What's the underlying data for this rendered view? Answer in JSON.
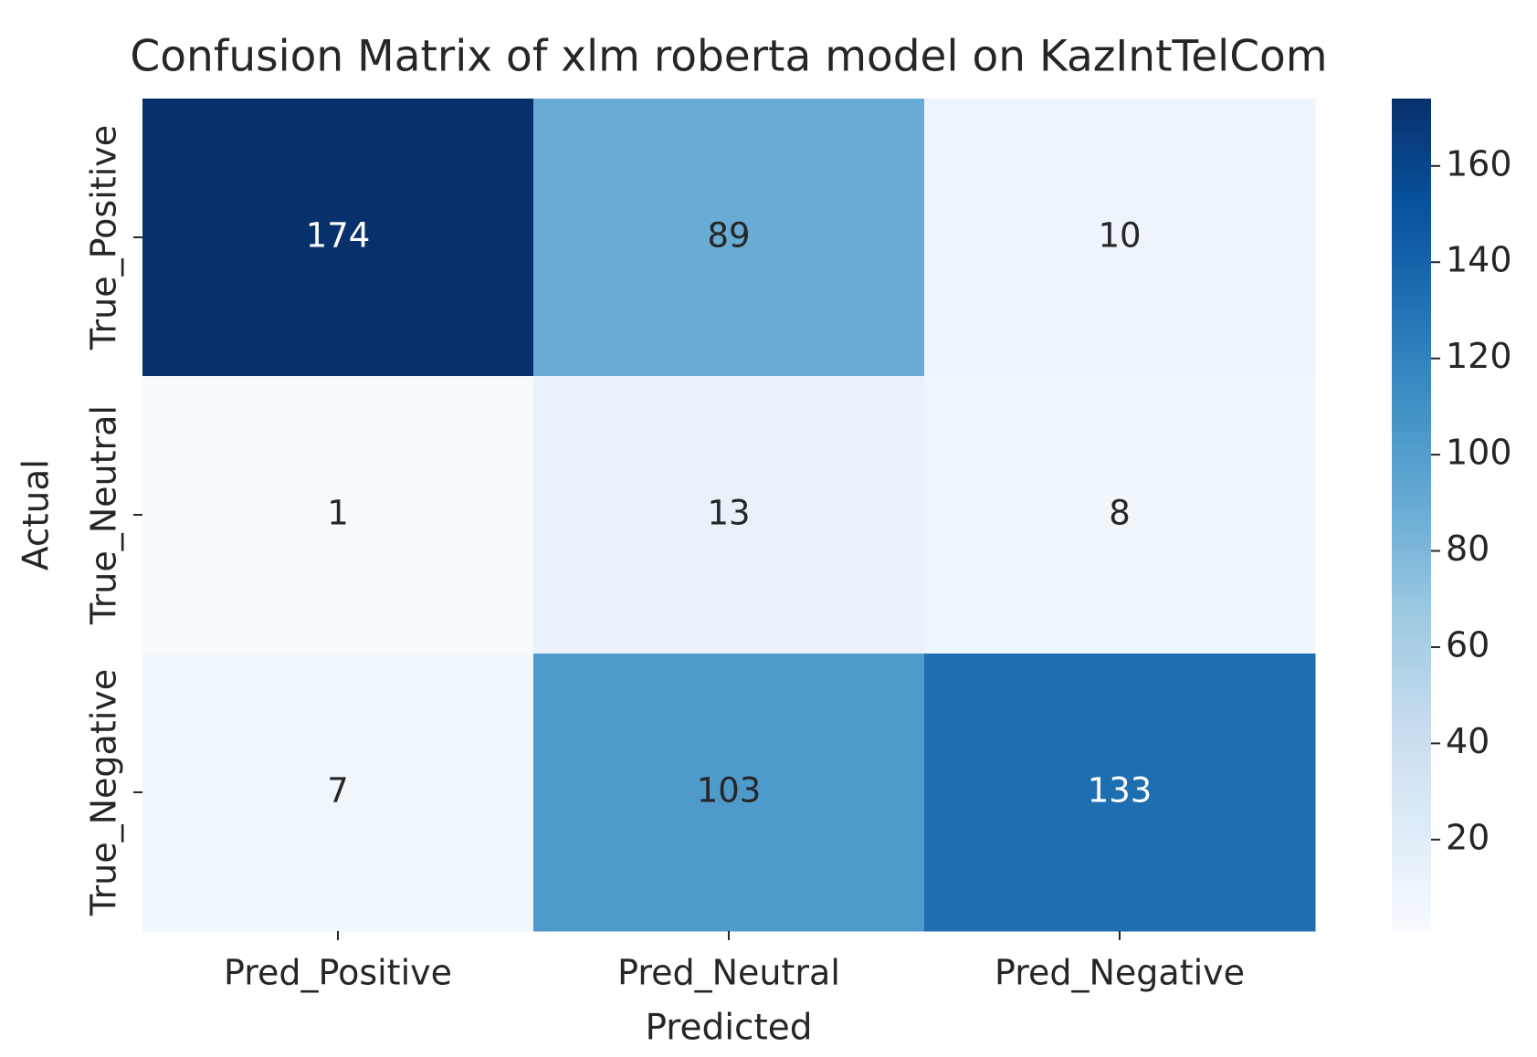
{
  "chart_data": {
    "type": "heatmap",
    "title": "Confusion Matrix of xlm roberta model on KazIntTelCom",
    "xlabel": "Predicted",
    "ylabel": "Actual",
    "x_categories": [
      "Pred_Positive",
      "Pred_Neutral",
      "Pred_Negative"
    ],
    "y_categories": [
      "True_Positive",
      "True_Neutral",
      "True_Negative"
    ],
    "values": [
      [
        174,
        89,
        10
      ],
      [
        1,
        13,
        8
      ],
      [
        7,
        103,
        133
      ]
    ],
    "cmap": "Blues",
    "clim": [
      1,
      174
    ],
    "cticks": [
      20,
      40,
      60,
      80,
      100,
      120,
      140,
      160
    ]
  }
}
